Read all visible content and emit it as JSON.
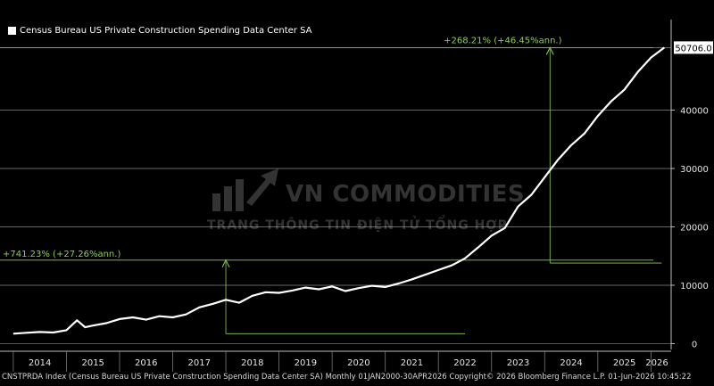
{
  "chart_data": {
    "type": "line",
    "legend": "Census Bureau US Private Construction Spending Data Center SA",
    "last_value_label": "50706.0",
    "series": [
      {
        "name": "Census Bureau US Private Construction Spending Data Center SA",
        "color": "#ffffff",
        "x": [
          2014.0,
          2014.25,
          2014.5,
          2014.75,
          2015.0,
          2015.2,
          2015.35,
          2015.5,
          2015.75,
          2016.0,
          2016.25,
          2016.5,
          2016.75,
          2017.0,
          2017.25,
          2017.5,
          2017.75,
          2018.0,
          2018.25,
          2018.5,
          2018.75,
          2019.0,
          2019.25,
          2019.5,
          2019.75,
          2020.0,
          2020.25,
          2020.5,
          2020.75,
          2021.0,
          2021.25,
          2021.5,
          2021.75,
          2022.0,
          2022.25,
          2022.5,
          2022.75,
          2023.0,
          2023.25,
          2023.5,
          2023.75,
          2024.0,
          2024.25,
          2024.5,
          2024.75,
          2025.0,
          2025.25,
          2025.5,
          2025.75,
          2026.0,
          2026.25
        ],
        "values": [
          1700,
          1850,
          2000,
          1900,
          2300,
          4000,
          2800,
          3100,
          3500,
          4200,
          4500,
          4100,
          4700,
          4500,
          5000,
          6200,
          6800,
          7500,
          7000,
          8200,
          8800,
          8700,
          9100,
          9600,
          9300,
          9800,
          9000,
          9500,
          9900,
          9700,
          10300,
          11000,
          11800,
          12600,
          13400,
          14600,
          16500,
          18500,
          19800,
          23500,
          25500,
          28500,
          31500,
          34000,
          36000,
          39000,
          41500,
          43500,
          46500,
          49000,
          50706
        ]
      }
    ],
    "xlim": [
      2013.75,
      2026.38
    ],
    "x_tick_labels": [
      "2014",
      "2015",
      "2016",
      "2017",
      "2018",
      "2019",
      "2020",
      "2021",
      "2022",
      "2023",
      "2024",
      "2025",
      "2026"
    ],
    "ylim": [
      -1000,
      55500
    ],
    "y_ticks": [
      0,
      10000,
      20000,
      30000,
      40000
    ],
    "y_tick_labels": [
      "0",
      "10000",
      "20000",
      "30000",
      "40000"
    ],
    "grid": true,
    "annotations": [
      {
        "label": "+741.23% (+27.26%ann.)",
        "x_start": 2018.0,
        "x_end": 2022.5,
        "y_start": 1700,
        "y_end": 14300
      },
      {
        "label": "+268.21% (+46.45%ann.)",
        "x_start": 2024.1,
        "x_end": 2026.2,
        "y_start": 13800,
        "y_end": 50706
      }
    ]
  },
  "watermark": {
    "title": "VN COMMODITIES",
    "subtitle": "TRANG THÔNG TIN ĐIỆN TỬ TỔNG HỢP"
  },
  "footer": "CNSTPRDA Index (Census Bureau US Private Construction Spending Data Center SA) Monthly 01JAN2000-30APR2026 Copyright© 2026 Bloomberg Finance L.P. 01-Jun-2026 10:45:22"
}
